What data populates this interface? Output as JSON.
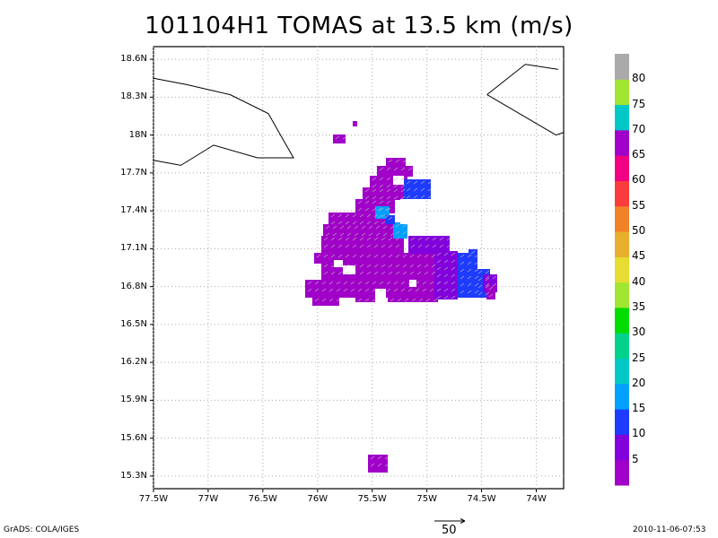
{
  "title": "101104H1 TOMAS at 13.5 km (m/s)",
  "footer_left": "GrADS: COLA/IGES",
  "footer_right": "2010-11-06-07:53",
  "reference_vector": {
    "label": "50"
  },
  "map": {
    "lon_range": [
      -77.5,
      -73.75
    ],
    "lat_range": [
      15.2,
      18.7
    ],
    "lon_ticks": [
      "77.5W",
      "77W",
      "76.5W",
      "76W",
      "75.5W",
      "75W",
      "74.5W",
      "74W"
    ],
    "lat_ticks": [
      "18.6N",
      "18.3N",
      "18N",
      "17.7N",
      "17.4N",
      "17.1N",
      "16.8N",
      "16.5N",
      "16.2N",
      "15.9N",
      "15.6N",
      "15.3N"
    ],
    "grid": true,
    "coastlines": [
      [
        [
          -77.5,
          18.45
        ],
        [
          -77.2,
          18.4
        ],
        [
          -76.8,
          18.32
        ],
        [
          -76.45,
          18.17
        ],
        [
          -76.22,
          17.82
        ],
        [
          -76.55,
          17.82
        ],
        [
          -76.95,
          17.92
        ],
        [
          -77.25,
          17.76
        ],
        [
          -77.5,
          17.8
        ]
      ],
      [
        [
          -74.45,
          18.32
        ],
        [
          -74.1,
          18.56
        ],
        [
          -73.8,
          18.52
        ]
      ],
      [
        [
          -73.75,
          18.02
        ],
        [
          -73.82,
          18.0
        ],
        [
          -74.45,
          18.32
        ]
      ]
    ]
  },
  "colorbar": {
    "labels": [
      "5",
      "10",
      "15",
      "20",
      "25",
      "30",
      "35",
      "40",
      "45",
      "50",
      "55",
      "60",
      "65",
      "70",
      "75",
      "80"
    ],
    "colors": [
      "#a000c8",
      "#8200dc",
      "#1e3cff",
      "#00a0ff",
      "#00c8c8",
      "#00d28c",
      "#00dc00",
      "#a0e632",
      "#e6dc32",
      "#e6af2d",
      "#f08228",
      "#fa3c3c",
      "#f00082",
      "#a000c8",
      "#00c8c8",
      "#a0e632",
      "#aaaaaa"
    ]
  }
}
